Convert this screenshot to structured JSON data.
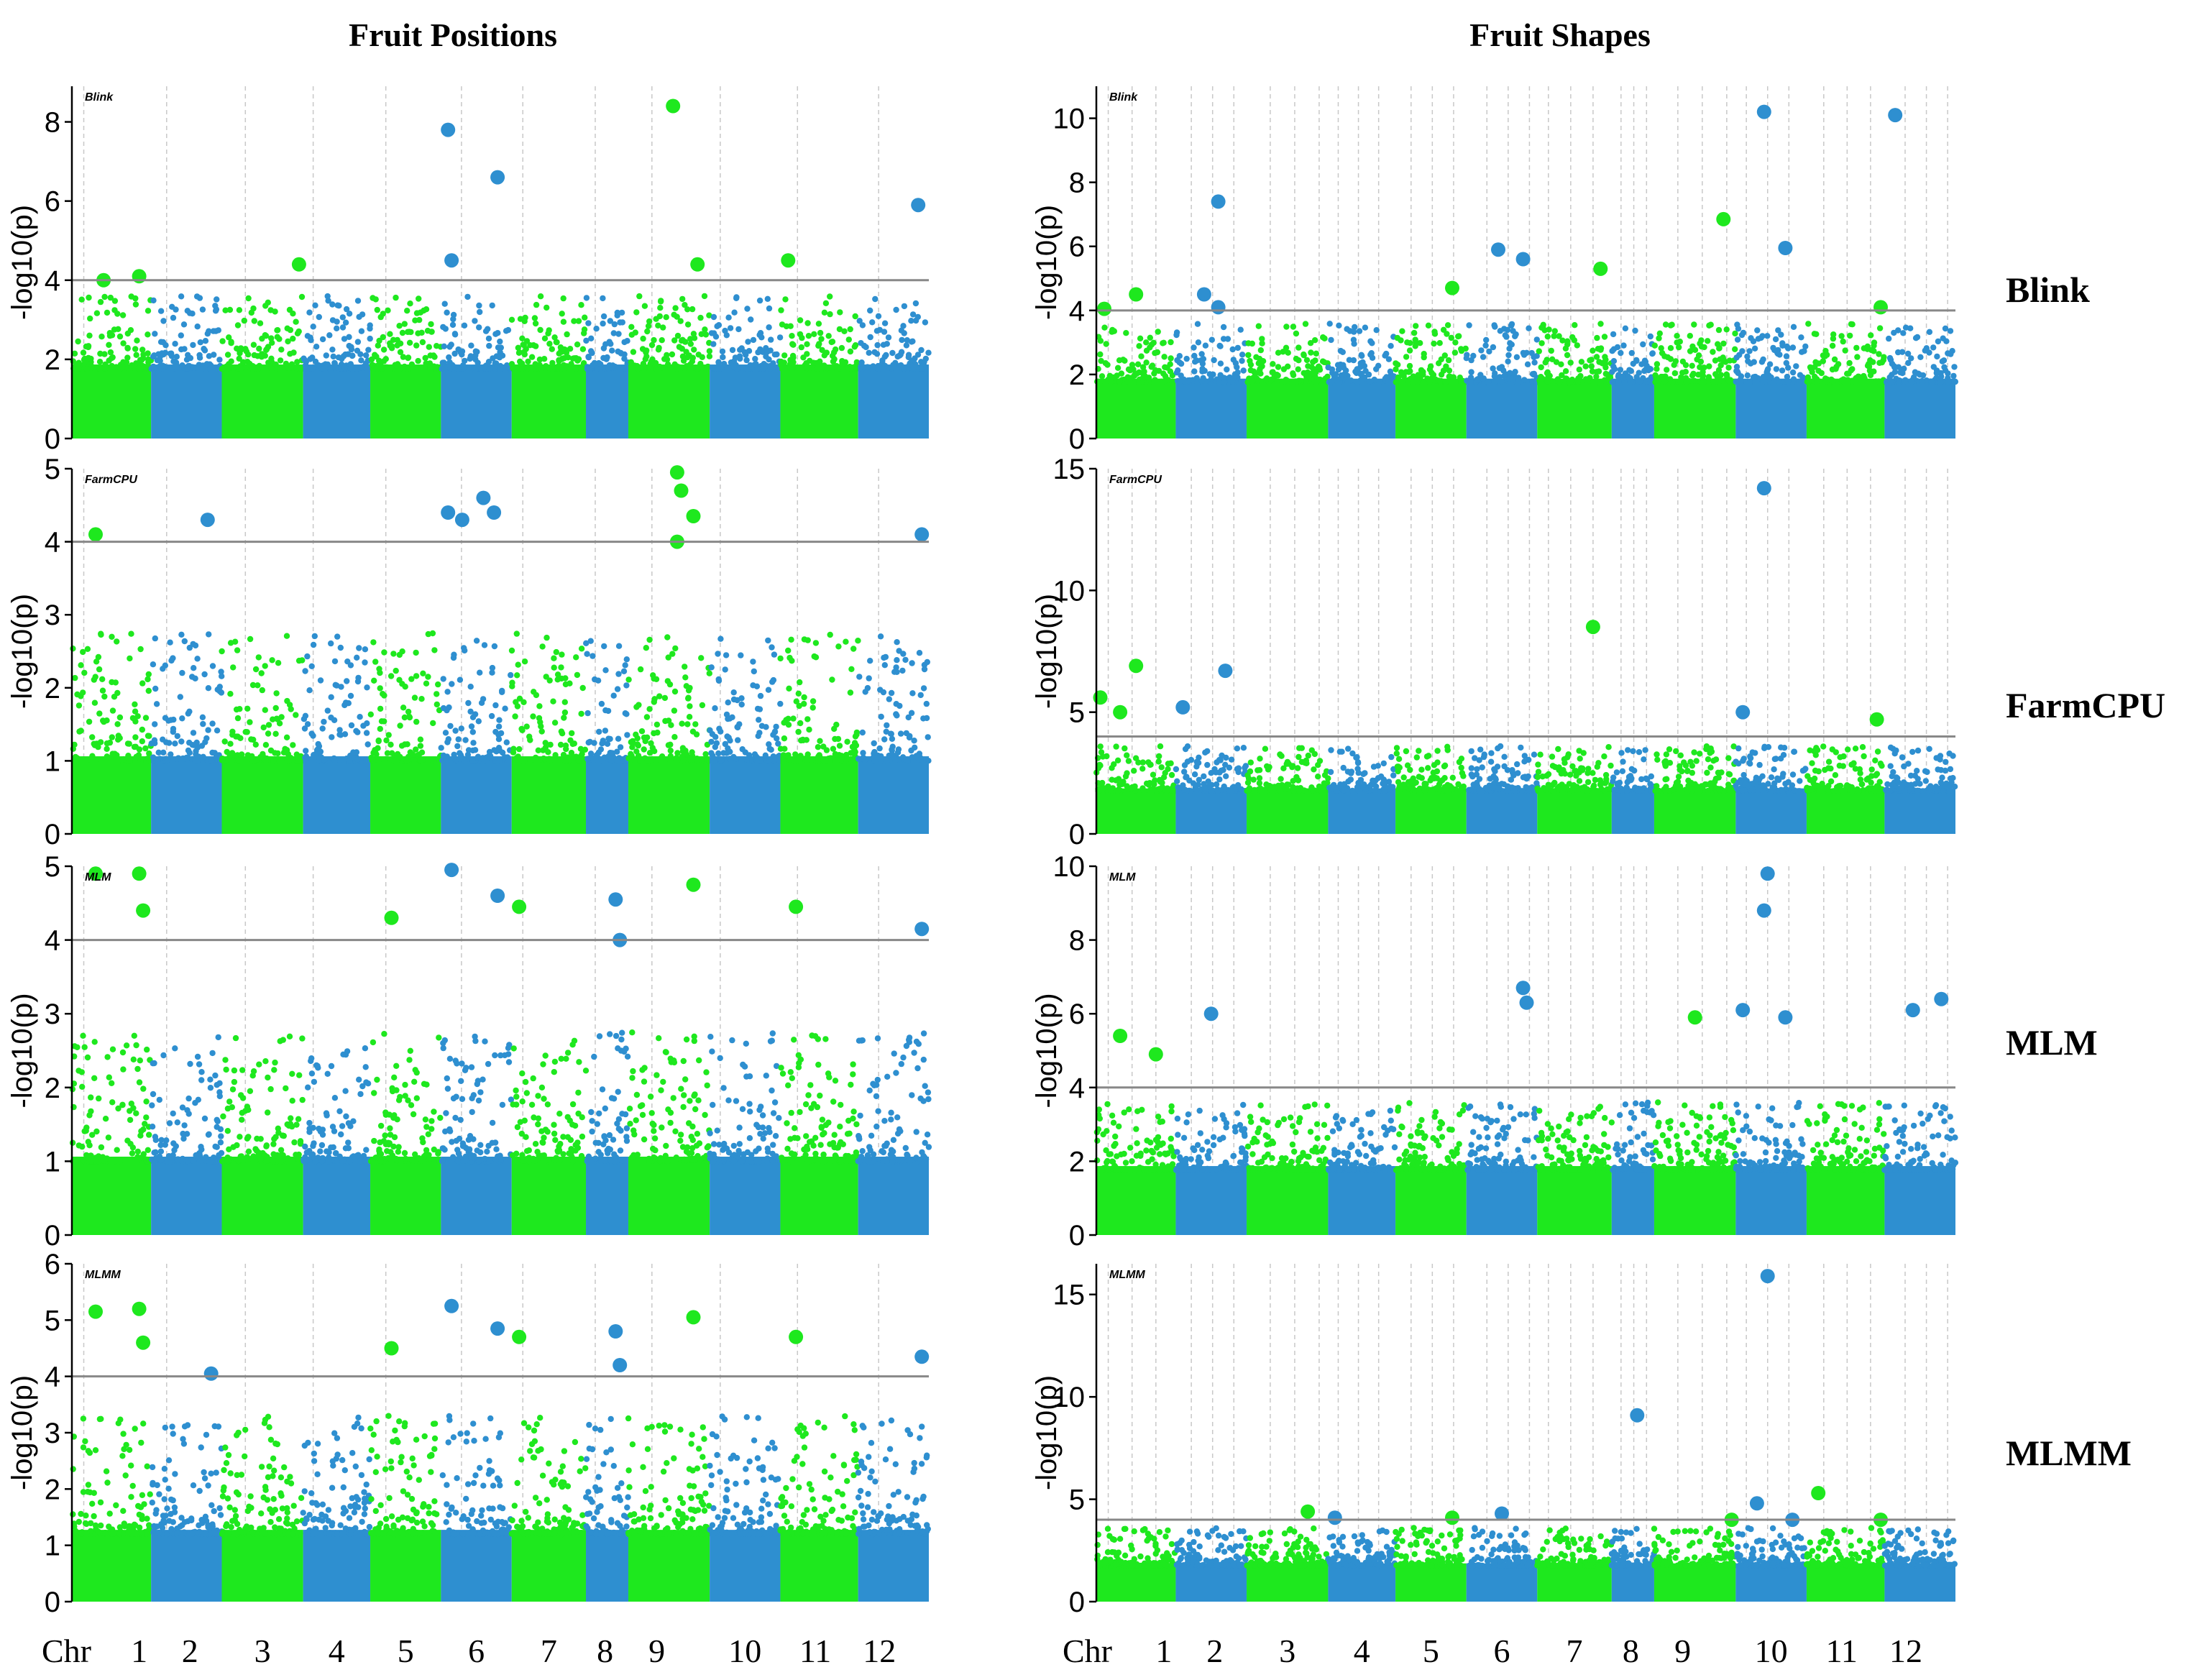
{
  "figure": {
    "column_titles": [
      "Fruit Positions",
      "Fruit Shapes"
    ],
    "row_labels": [
      "Blink",
      "FarmCPU",
      "MLM",
      "MLMM"
    ],
    "chr_prefix": "Chr",
    "chromosomes": [
      "1",
      "2",
      "3",
      "4",
      "5",
      "6",
      "7",
      "8",
      "9",
      "10",
      "11",
      "12"
    ],
    "colors": {
      "green": "#1ee81e",
      "blue": "#2e8fd0",
      "threshold": "#888888",
      "guide": "#c8c8c8"
    }
  },
  "chart_data": [
    {
      "type": "scatter",
      "subtype": "manhattan",
      "trait": "Fruit Positions",
      "method": "Blink",
      "ylabel": "-log10(p)",
      "ylim": [
        0,
        8.9
      ],
      "yticks": [
        0,
        2,
        4,
        6,
        8
      ],
      "threshold": 4,
      "significant": [
        {
          "chr": "1",
          "pos": 0.4,
          "value": 4.0
        },
        {
          "chr": "1",
          "pos": 0.85,
          "value": 4.1
        },
        {
          "chr": "3",
          "pos": 0.95,
          "value": 4.4
        },
        {
          "chr": "6",
          "pos": 0.1,
          "value": 7.8
        },
        {
          "chr": "6",
          "pos": 0.15,
          "value": 4.5
        },
        {
          "chr": "6",
          "pos": 0.8,
          "value": 6.6
        },
        {
          "chr": "9",
          "pos": 0.55,
          "value": 8.4
        },
        {
          "chr": "9",
          "pos": 0.85,
          "value": 4.4
        },
        {
          "chr": "11",
          "pos": 0.1,
          "value": 4.5
        },
        {
          "chr": "12",
          "pos": 0.85,
          "value": 5.9
        }
      ]
    },
    {
      "type": "scatter",
      "subtype": "manhattan",
      "trait": "Fruit Positions",
      "method": "FarmCPU",
      "ylabel": "-log10(p)",
      "ylim": [
        0,
        5.0
      ],
      "yticks": [
        0,
        1,
        2,
        3,
        4,
        5
      ],
      "threshold": 4,
      "significant": [
        {
          "chr": "1",
          "pos": 0.3,
          "value": 4.1
        },
        {
          "chr": "2",
          "pos": 0.8,
          "value": 4.3
        },
        {
          "chr": "6",
          "pos": 0.1,
          "value": 4.4
        },
        {
          "chr": "6",
          "pos": 0.3,
          "value": 4.3
        },
        {
          "chr": "6",
          "pos": 0.6,
          "value": 4.6
        },
        {
          "chr": "6",
          "pos": 0.75,
          "value": 4.4
        },
        {
          "chr": "9",
          "pos": 0.6,
          "value": 4.95
        },
        {
          "chr": "9",
          "pos": 0.65,
          "value": 4.7
        },
        {
          "chr": "9",
          "pos": 0.8,
          "value": 4.35
        },
        {
          "chr": "9",
          "pos": 0.6,
          "value": 4.0
        },
        {
          "chr": "12",
          "pos": 0.9,
          "value": 4.1
        }
      ]
    },
    {
      "type": "scatter",
      "subtype": "manhattan",
      "trait": "Fruit Positions",
      "method": "MLM",
      "ylabel": "-log10(p)",
      "ylim": [
        0,
        5.0
      ],
      "yticks": [
        0,
        1,
        2,
        3,
        4,
        5
      ],
      "threshold": 4,
      "significant": [
        {
          "chr": "1",
          "pos": 0.3,
          "value": 4.9
        },
        {
          "chr": "1",
          "pos": 0.85,
          "value": 4.9
        },
        {
          "chr": "1",
          "pos": 0.9,
          "value": 4.4
        },
        {
          "chr": "5",
          "pos": 0.3,
          "value": 4.3
        },
        {
          "chr": "6",
          "pos": 0.15,
          "value": 4.95
        },
        {
          "chr": "6",
          "pos": 0.8,
          "value": 4.6
        },
        {
          "chr": "7",
          "pos": 0.1,
          "value": 4.45
        },
        {
          "chr": "8",
          "pos": 0.7,
          "value": 4.55
        },
        {
          "chr": "8",
          "pos": 0.8,
          "value": 4.0
        },
        {
          "chr": "9",
          "pos": 0.8,
          "value": 4.75
        },
        {
          "chr": "11",
          "pos": 0.2,
          "value": 4.45
        },
        {
          "chr": "12",
          "pos": 0.9,
          "value": 4.15
        }
      ]
    },
    {
      "type": "scatter",
      "subtype": "manhattan",
      "trait": "Fruit Positions",
      "method": "MLMM",
      "ylabel": "-log10(p)",
      "ylim": [
        0,
        6.0
      ],
      "yticks": [
        0,
        1,
        2,
        3,
        4,
        5,
        6
      ],
      "threshold": 4,
      "significant": [
        {
          "chr": "1",
          "pos": 0.3,
          "value": 5.15
        },
        {
          "chr": "1",
          "pos": 0.85,
          "value": 5.2
        },
        {
          "chr": "1",
          "pos": 0.9,
          "value": 4.6
        },
        {
          "chr": "2",
          "pos": 0.85,
          "value": 4.05
        },
        {
          "chr": "5",
          "pos": 0.3,
          "value": 4.5
        },
        {
          "chr": "6",
          "pos": 0.15,
          "value": 5.25
        },
        {
          "chr": "6",
          "pos": 0.8,
          "value": 4.85
        },
        {
          "chr": "7",
          "pos": 0.1,
          "value": 4.7
        },
        {
          "chr": "8",
          "pos": 0.7,
          "value": 4.8
        },
        {
          "chr": "8",
          "pos": 0.8,
          "value": 4.2
        },
        {
          "chr": "9",
          "pos": 0.8,
          "value": 5.05
        },
        {
          "chr": "11",
          "pos": 0.2,
          "value": 4.7
        },
        {
          "chr": "12",
          "pos": 0.9,
          "value": 4.35
        }
      ]
    },
    {
      "type": "scatter",
      "subtype": "manhattan",
      "trait": "Fruit Shapes",
      "method": "Blink",
      "ylabel": "-log10(p)",
      "ylim": [
        0,
        11.0
      ],
      "yticks": [
        0,
        2,
        4,
        6,
        8,
        10
      ],
      "threshold": 4,
      "significant": [
        {
          "chr": "1",
          "pos": 0.1,
          "value": 4.05
        },
        {
          "chr": "1",
          "pos": 0.5,
          "value": 4.5
        },
        {
          "chr": "2",
          "pos": 0.4,
          "value": 4.5
        },
        {
          "chr": "2",
          "pos": 0.6,
          "value": 7.4
        },
        {
          "chr": "2",
          "pos": 0.6,
          "value": 4.1
        },
        {
          "chr": "5",
          "pos": 0.8,
          "value": 4.7
        },
        {
          "chr": "6",
          "pos": 0.45,
          "value": 5.9
        },
        {
          "chr": "6",
          "pos": 0.8,
          "value": 5.6
        },
        {
          "chr": "7",
          "pos": 0.85,
          "value": 5.3
        },
        {
          "chr": "9",
          "pos": 0.85,
          "value": 6.85
        },
        {
          "chr": "10",
          "pos": 0.4,
          "value": 10.2
        },
        {
          "chr": "10",
          "pos": 0.7,
          "value": 5.95
        },
        {
          "chr": "12",
          "pos": 0.15,
          "value": 10.1
        },
        {
          "chr": "11",
          "pos": 0.95,
          "value": 4.1
        }
      ]
    },
    {
      "type": "scatter",
      "subtype": "manhattan",
      "trait": "Fruit Shapes",
      "method": "FarmCPU",
      "ylabel": "-log10(p)",
      "ylim": [
        0,
        15.0
      ],
      "yticks": [
        0,
        5,
        10,
        15
      ],
      "threshold": 4,
      "significant": [
        {
          "chr": "1",
          "pos": 0.05,
          "value": 5.6
        },
        {
          "chr": "1",
          "pos": 0.5,
          "value": 6.9
        },
        {
          "chr": "1",
          "pos": 0.3,
          "value": 5.0
        },
        {
          "chr": "2",
          "pos": 0.1,
          "value": 5.2
        },
        {
          "chr": "2",
          "pos": 0.7,
          "value": 6.7
        },
        {
          "chr": "7",
          "pos": 0.75,
          "value": 8.5
        },
        {
          "chr": "10",
          "pos": 0.4,
          "value": 14.2
        },
        {
          "chr": "10",
          "pos": 0.1,
          "value": 5.0
        },
        {
          "chr": "11",
          "pos": 0.9,
          "value": 4.7
        }
      ]
    },
    {
      "type": "scatter",
      "subtype": "manhattan",
      "trait": "Fruit Shapes",
      "method": "MLM",
      "ylabel": "-log10(p)",
      "ylim": [
        0,
        10.0
      ],
      "yticks": [
        0,
        2,
        4,
        6,
        8,
        10
      ],
      "threshold": 4,
      "significant": [
        {
          "chr": "1",
          "pos": 0.3,
          "value": 5.4
        },
        {
          "chr": "1",
          "pos": 0.75,
          "value": 4.9
        },
        {
          "chr": "2",
          "pos": 0.5,
          "value": 6.0
        },
        {
          "chr": "6",
          "pos": 0.8,
          "value": 6.7
        },
        {
          "chr": "6",
          "pos": 0.85,
          "value": 6.3
        },
        {
          "chr": "9",
          "pos": 0.5,
          "value": 5.9
        },
        {
          "chr": "10",
          "pos": 0.1,
          "value": 6.1
        },
        {
          "chr": "10",
          "pos": 0.45,
          "value": 9.8
        },
        {
          "chr": "10",
          "pos": 0.4,
          "value": 8.8
        },
        {
          "chr": "10",
          "pos": 0.7,
          "value": 5.9
        },
        {
          "chr": "12",
          "pos": 0.4,
          "value": 6.1
        },
        {
          "chr": "12",
          "pos": 0.8,
          "value": 6.4
        }
      ]
    },
    {
      "type": "scatter",
      "subtype": "manhattan",
      "trait": "Fruit Shapes",
      "method": "MLMM",
      "ylabel": "-log10(p)",
      "ylim": [
        0,
        16.5
      ],
      "yticks": [
        0,
        5,
        10,
        15
      ],
      "threshold": 4,
      "significant": [
        {
          "chr": "3",
          "pos": 0.75,
          "value": 4.4
        },
        {
          "chr": "4",
          "pos": 0.1,
          "value": 4.1
        },
        {
          "chr": "5",
          "pos": 0.8,
          "value": 4.1
        },
        {
          "chr": "6",
          "pos": 0.5,
          "value": 4.3
        },
        {
          "chr": "8",
          "pos": 0.6,
          "value": 9.1
        },
        {
          "chr": "10",
          "pos": 0.45,
          "value": 15.9
        },
        {
          "chr": "10",
          "pos": 0.3,
          "value": 4.8
        },
        {
          "chr": "10",
          "pos": 0.8,
          "value": 4.0
        },
        {
          "chr": "11",
          "pos": 0.15,
          "value": 5.3
        },
        {
          "chr": "11",
          "pos": 0.95,
          "value": 4.0
        },
        {
          "chr": "9",
          "pos": 0.95,
          "value": 4.0
        }
      ]
    }
  ]
}
